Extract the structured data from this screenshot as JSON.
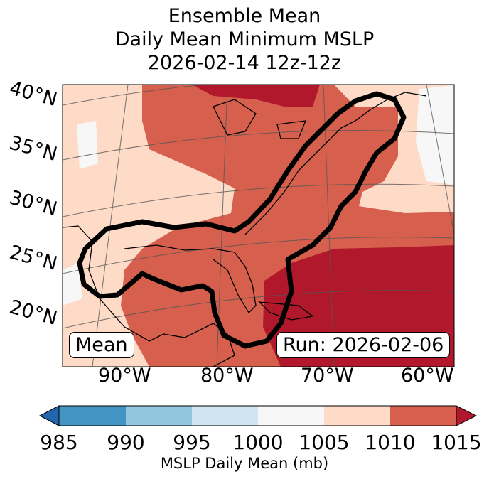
{
  "title": {
    "line1": "Ensemble Mean",
    "line2": "Daily Mean Minimum MSLP",
    "line3": "2026-02-14 12z-12z"
  },
  "map": {
    "latitude_labels": [
      "40°N",
      "35°N",
      "30°N",
      "25°N",
      "20°N"
    ],
    "longitude_labels": [
      "90°W",
      "80°W",
      "70°W",
      "60°W"
    ],
    "mean_box_label": "Mean",
    "run_box_label": "Run: 2026-02-06",
    "field_colors": {
      "1005-1010": "#fddbc7",
      "1000-1005": "#f7f7f7",
      "1010-1015": "#d6604d",
      ">1015": "#b2182b"
    },
    "contour_color": "#000000"
  },
  "colorbar": {
    "ticks": [
      "985",
      "990",
      "995",
      "1000",
      "1005",
      "1010",
      "1015"
    ],
    "label": "MSLP Daily Mean (mb)",
    "bins": [
      {
        "range": "<985",
        "color": "#2166ac"
      },
      {
        "range": "985-990",
        "color": "#4393c3"
      },
      {
        "range": "990-995",
        "color": "#92c5de"
      },
      {
        "range": "995-1000",
        "color": "#d1e5f0"
      },
      {
        "range": "1000-1005",
        "color": "#f7f7f7"
      },
      {
        "range": "1005-1010",
        "color": "#fddbc7"
      },
      {
        "range": "1010-1015",
        "color": "#d6604d"
      },
      {
        "range": ">1015",
        "color": "#b2182b"
      }
    ]
  }
}
